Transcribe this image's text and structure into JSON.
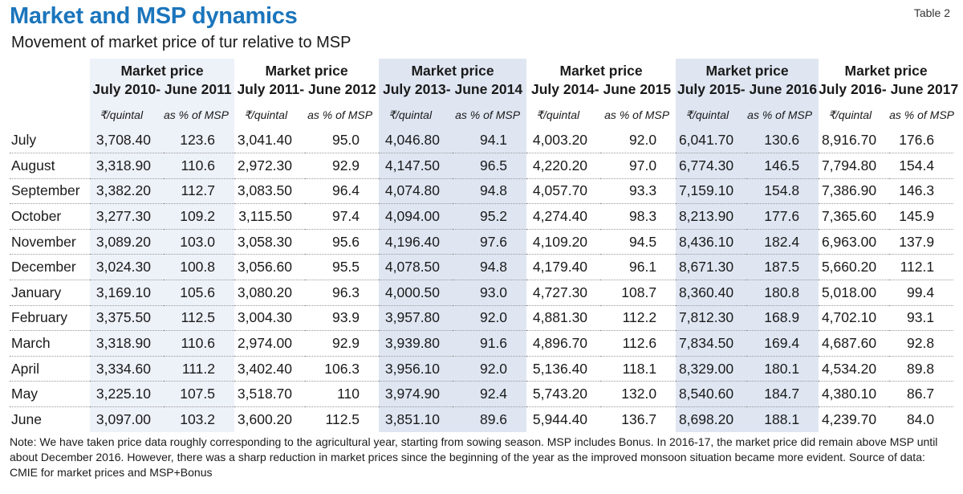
{
  "title": "Market and MSP dynamics",
  "subtitle": "Movement of market price of tur relative to MSP",
  "table_label": "Table 2",
  "colors": {
    "title": "#1b75bc",
    "band_light": "#edf1f8",
    "band_dark": "#dfe6f2"
  },
  "periods": [
    {
      "line1": "Market price",
      "line2": "July 2010- June 2011"
    },
    {
      "line1": "Market price",
      "line2": "July 2011- June 2012"
    },
    {
      "line1": "Market price",
      "line2": "July 2013- June 2014"
    },
    {
      "line1": "Market price",
      "line2": "July 2014- June 2015"
    },
    {
      "line1": "Market price",
      "line2": "July 2015- June 2016"
    },
    {
      "line1": "Market price",
      "line2": "July 2016- June 2017"
    }
  ],
  "subheaders": {
    "price": "₹/quintal",
    "pct": "as % of MSP"
  },
  "rows": [
    {
      "month": "July",
      "cells": [
        [
          "3,708.40",
          "123.6"
        ],
        [
          "3,041.40",
          "95.0"
        ],
        [
          "4,046.80",
          "94.1"
        ],
        [
          "4,003.20",
          "92.0"
        ],
        [
          "6,041.70",
          "130.6"
        ],
        [
          "8,916.70",
          "176.6"
        ]
      ]
    },
    {
      "month": "August",
      "cells": [
        [
          "3,318.90",
          "110.6"
        ],
        [
          "2,972.30",
          "92.9"
        ],
        [
          "4,147.50",
          "96.5"
        ],
        [
          "4,220.20",
          "97.0"
        ],
        [
          "6,774.30",
          "146.5"
        ],
        [
          "7,794.80",
          "154.4"
        ]
      ]
    },
    {
      "month": "September",
      "cells": [
        [
          "3,382.20",
          "112.7"
        ],
        [
          "3,083.50",
          "96.4"
        ],
        [
          "4,074.80",
          "94.8"
        ],
        [
          "4,057.70",
          "93.3"
        ],
        [
          "7,159.10",
          "154.8"
        ],
        [
          "7,386.90",
          "146.3"
        ]
      ]
    },
    {
      "month": "October",
      "cells": [
        [
          "3,277.30",
          "109.2"
        ],
        [
          "3,115.50",
          "97.4"
        ],
        [
          "4,094.00",
          "95.2"
        ],
        [
          "4,274.40",
          "98.3"
        ],
        [
          "8,213.90",
          "177.6"
        ],
        [
          "7,365.60",
          "145.9"
        ]
      ]
    },
    {
      "month": "November",
      "cells": [
        [
          "3,089.20",
          "103.0"
        ],
        [
          "3,058.30",
          "95.6"
        ],
        [
          "4,196.40",
          "97.6"
        ],
        [
          "4,109.20",
          "94.5"
        ],
        [
          "8,436.10",
          "182.4"
        ],
        [
          "6,963.00",
          "137.9"
        ]
      ]
    },
    {
      "month": "December",
      "cells": [
        [
          "3,024.30",
          "100.8"
        ],
        [
          "3,056.60",
          "95.5"
        ],
        [
          "4,078.50",
          "94.8"
        ],
        [
          "4,179.40",
          "96.1"
        ],
        [
          "8,671.30",
          "187.5"
        ],
        [
          "5,660.20",
          "112.1"
        ]
      ]
    },
    {
      "month": "January",
      "cells": [
        [
          "3,169.10",
          "105.6"
        ],
        [
          "3,080.20",
          "96.3"
        ],
        [
          "4,000.50",
          "93.0"
        ],
        [
          "4,727.30",
          "108.7"
        ],
        [
          "8,360.40",
          "180.8"
        ],
        [
          "5,018.00",
          "99.4"
        ]
      ]
    },
    {
      "month": "February",
      "cells": [
        [
          "3,375.50",
          "112.5"
        ],
        [
          "3,004.30",
          "93.9"
        ],
        [
          "3,957.80",
          "92.0"
        ],
        [
          "4,881.30",
          "112.2"
        ],
        [
          "7,812.30",
          "168.9"
        ],
        [
          "4,702.10",
          "93.1"
        ]
      ]
    },
    {
      "month": "March",
      "cells": [
        [
          "3,318.90",
          "110.6"
        ],
        [
          "2,974.00",
          "92.9"
        ],
        [
          "3,939.80",
          "91.6"
        ],
        [
          "4,896.70",
          "112.6"
        ],
        [
          "7,834.50",
          "169.4"
        ],
        [
          "4,687.60",
          "92.8"
        ]
      ]
    },
    {
      "month": "April",
      "cells": [
        [
          "3,334.60",
          "111.2"
        ],
        [
          "3,402.40",
          "106.3"
        ],
        [
          "3,956.10",
          "92.0"
        ],
        [
          "5,136.40",
          "118.1"
        ],
        [
          "8,329.00",
          "180.1"
        ],
        [
          "4,534.20",
          "89.8"
        ]
      ]
    },
    {
      "month": "May",
      "cells": [
        [
          "3,225.10",
          "107.5"
        ],
        [
          "3,518.70",
          "110"
        ],
        [
          "3,974.90",
          "92.4"
        ],
        [
          "5,743.20",
          "132.0"
        ],
        [
          "8,540.60",
          "184.7"
        ],
        [
          "4,380.10",
          "86.7"
        ]
      ]
    },
    {
      "month": "June",
      "cells": [
        [
          "3,097.00",
          "103.2"
        ],
        [
          "3,600.20",
          "112.5"
        ],
        [
          "3,851.10",
          "89.6"
        ],
        [
          "5,944.40",
          "136.7"
        ],
        [
          "8,698.20",
          "188.1"
        ],
        [
          "4,239.70",
          "84.0"
        ]
      ]
    }
  ],
  "note": "Note: We have taken price data roughly corresponding to the agricultural year, starting from sowing season. MSP includes Bonus. In 2016-17, the market price did remain above MSP until about December 2016. However, there was a sharp reduction in market prices since the beginning of the year as the improved monsoon situation became more evident.  Source of data: CMIE for market prices and MSP+Bonus"
}
